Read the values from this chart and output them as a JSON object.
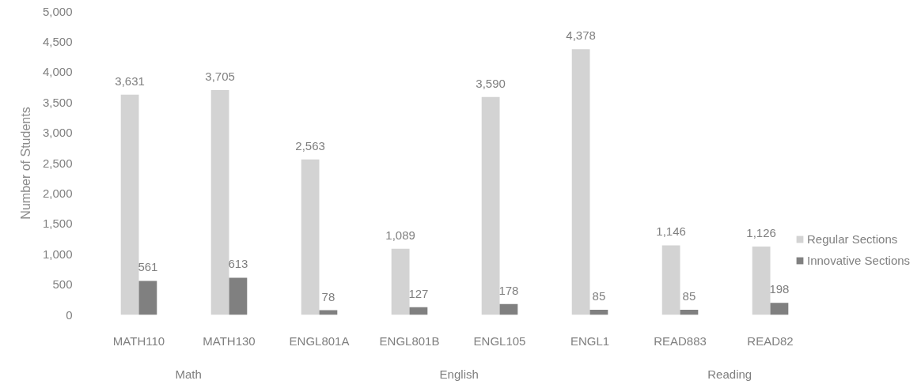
{
  "chart_data": {
    "type": "bar",
    "ylabel": "Number of Students",
    "categories": [
      "MATH110",
      "MATH130",
      "ENGL801A",
      "ENGL801B",
      "ENGL105",
      "ENGL1",
      "READ883",
      "READ82"
    ],
    "series": [
      {
        "name": "Regular Sections",
        "color": "#d3d3d3",
        "values": [
          3631,
          3705,
          2563,
          1089,
          3590,
          4378,
          1146,
          1126
        ],
        "value_labels": [
          "3,631",
          "3,705",
          "2,563",
          "1,089",
          "3,590",
          "4,378",
          "1,146",
          "1,126"
        ]
      },
      {
        "name": "Innovative Sections",
        "color": "#808080",
        "values": [
          561,
          613,
          78,
          127,
          178,
          85,
          85,
          198
        ],
        "value_labels": [
          "561",
          "613",
          "78",
          "127",
          "178",
          "85",
          "85",
          "198"
        ]
      }
    ],
    "ylim": [
      0,
      5000
    ],
    "yticks": [
      0,
      500,
      {
        "value": 1000,
        "label": "1,000"
      },
      {
        "value": 1500,
        "label": "1,500"
      },
      {
        "value": 2000,
        "label": "2,000"
      },
      {
        "value": 2500,
        "label": "2,500"
      },
      {
        "value": 3000,
        "label": "3,000"
      },
      {
        "value": 3500,
        "label": "3,500"
      },
      {
        "value": 4000,
        "label": "4,000"
      },
      {
        "value": 4500,
        "label": "4,500"
      },
      {
        "value": 5000,
        "label": "5,000"
      }
    ],
    "grid": false,
    "legend": "right",
    "annotations": [
      "Math",
      "English",
      "Reading"
    ]
  }
}
